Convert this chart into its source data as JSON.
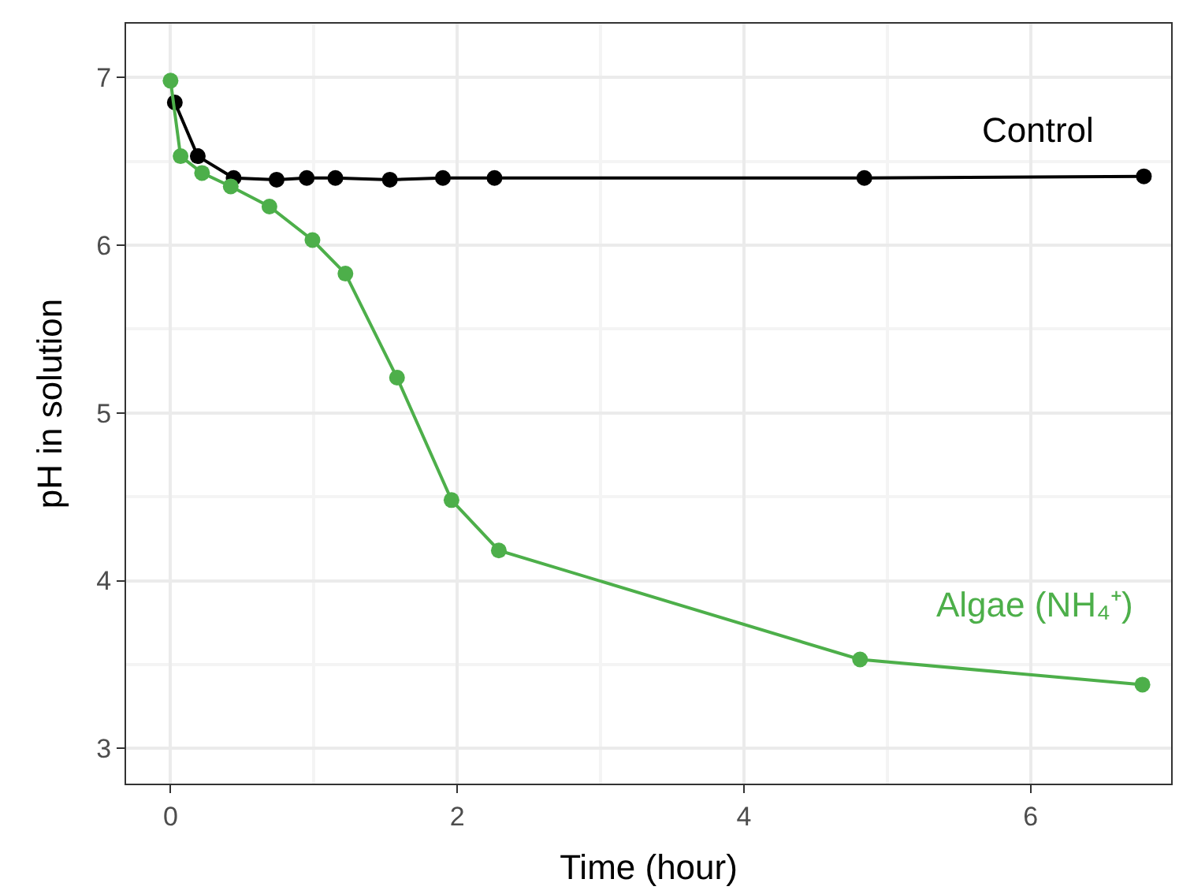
{
  "chart_data": {
    "type": "line",
    "xlabel": "Time (hour)",
    "ylabel": "pH in solution",
    "xlim": [
      -0.31,
      6.98
    ],
    "ylim": [
      2.79,
      7.32
    ],
    "xticks": [
      0,
      2,
      4,
      6
    ],
    "yticks": [
      3,
      4,
      5,
      6,
      7
    ],
    "grid": true,
    "legend": false,
    "marker": "circle",
    "line_style": "solid",
    "series": [
      {
        "name": "Control",
        "color": "#000000",
        "x": [
          0.03,
          0.19,
          0.44,
          0.74,
          0.95,
          1.15,
          1.53,
          1.9,
          2.26,
          4.84,
          6.79
        ],
        "values": [
          6.85,
          6.53,
          6.4,
          6.39,
          6.4,
          6.4,
          6.39,
          6.4,
          6.4,
          6.4,
          6.41
        ]
      },
      {
        "name": "Algae (NH₄⁺)",
        "color": "#4daf4a",
        "x": [
          0,
          0.07,
          0.22,
          0.42,
          0.69,
          0.99,
          1.22,
          1.58,
          1.96,
          2.29,
          4.81,
          6.78
        ],
        "values": [
          6.98,
          6.53,
          6.43,
          6.35,
          6.23,
          6.03,
          5.83,
          5.21,
          4.48,
          4.18,
          3.53,
          3.38
        ]
      }
    ]
  }
}
